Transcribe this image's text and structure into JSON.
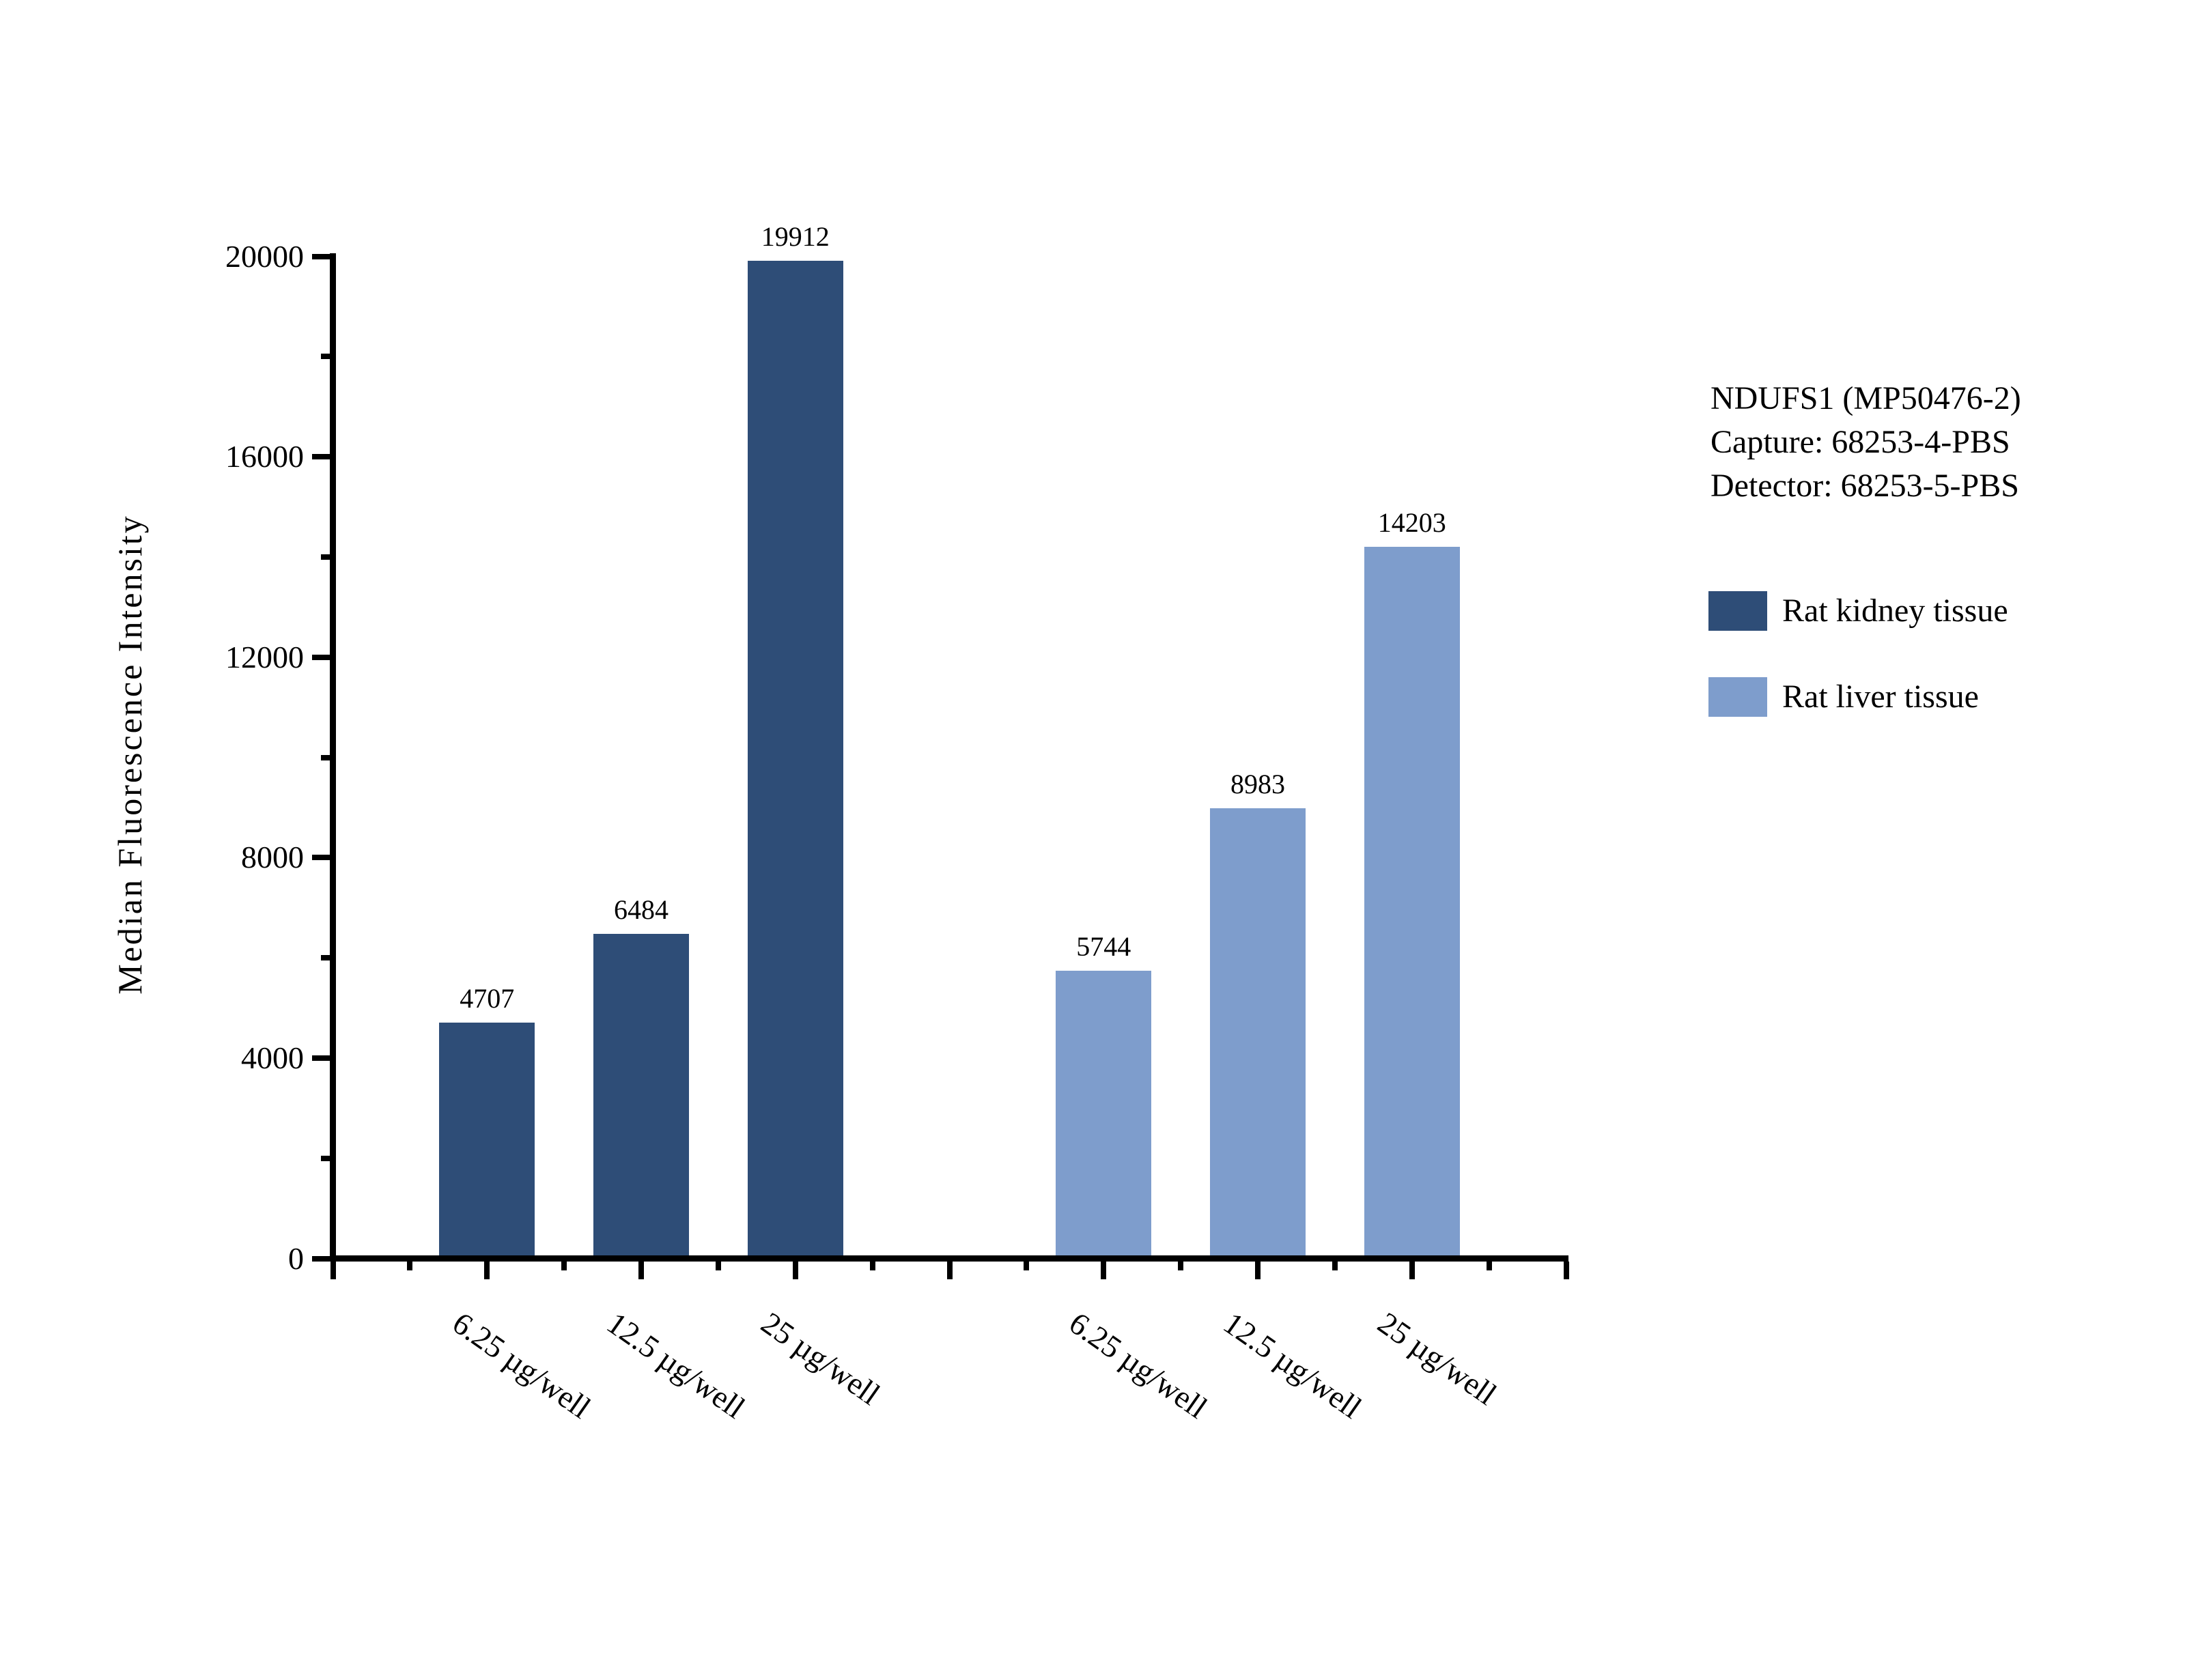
{
  "figure": {
    "background": "#FFFFFF",
    "axis_color": "#000000",
    "text_color": "#000000"
  },
  "chart_data": {
    "type": "bar",
    "title": "",
    "ylabel": "Median Fluorescence Intensity",
    "xlabel": "",
    "ylim": [
      0,
      20000
    ],
    "y_major_step": 4000,
    "y_minor_step": 2000,
    "y_tick_labels": [
      "0",
      "4000",
      "8000",
      "12000",
      "16000",
      "20000"
    ],
    "categories": [
      "6.25 µg/well",
      "12.5 µg/well",
      "25 µg/well"
    ],
    "series": [
      {
        "name": "Rat kidney tissue",
        "color": "#2E4D77",
        "values": [
          4707,
          6484,
          19912
        ]
      },
      {
        "name": "Rat liver tissue",
        "color": "#7E9DCC",
        "values": [
          5744,
          8983,
          14203
        ]
      }
    ],
    "bar_value_labels": [
      [
        "4707",
        "6484",
        "19912"
      ],
      [
        "5744",
        "8983",
        "14203"
      ]
    ],
    "grid": false,
    "legend_position": "right",
    "annotation": [
      "NDUFS1 (MP50476-2)",
      "Capture: 68253-4-PBS",
      "Detector: 68253-5-PBS"
    ]
  },
  "legend": {
    "items": [
      {
        "label": "Rat kidney tissue",
        "color": "#2E4D77"
      },
      {
        "label": "Rat liver tissue",
        "color": "#7E9DCC"
      }
    ]
  }
}
